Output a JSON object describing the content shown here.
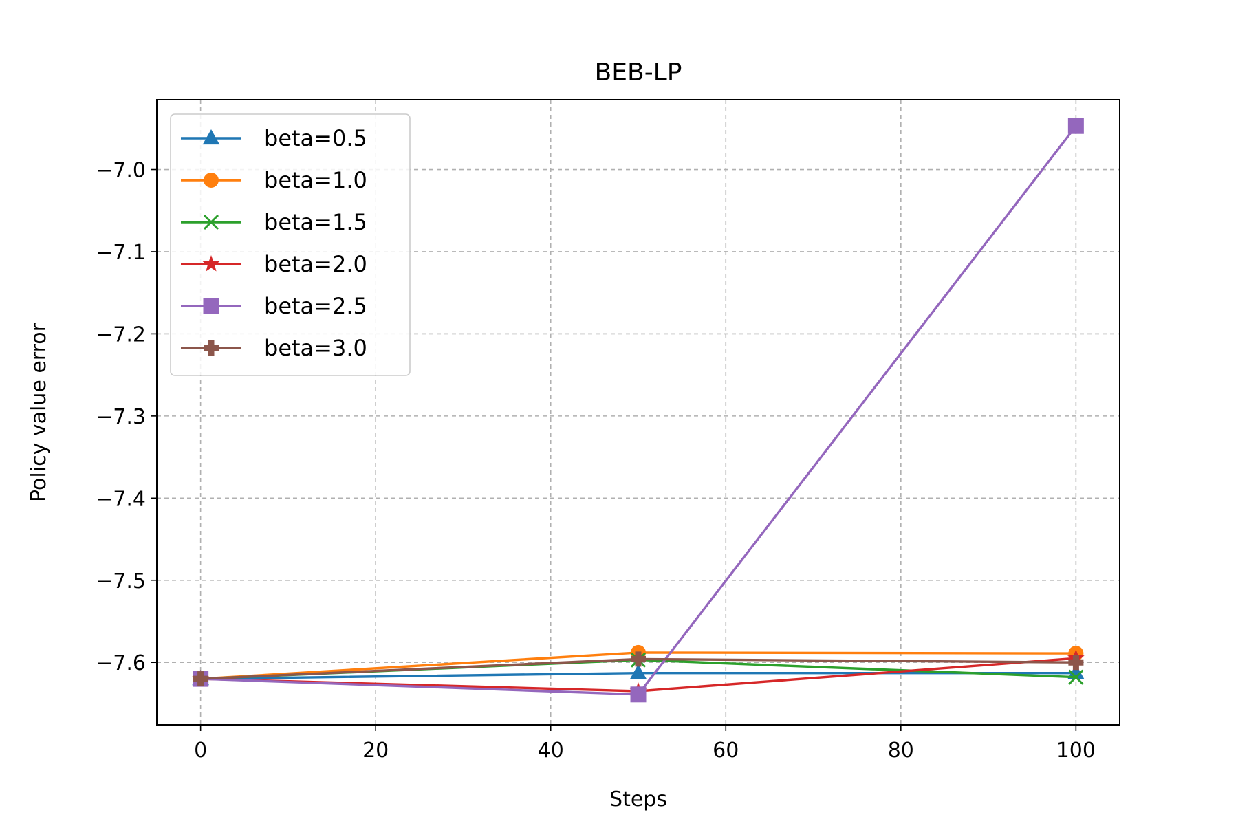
{
  "chart_data": {
    "type": "line",
    "title": "BEB-LP",
    "xlabel": "Steps",
    "ylabel": "Policy value error",
    "x": [
      0,
      50,
      100
    ],
    "xlim": [
      -5,
      105
    ],
    "ylim": [
      -7.676,
      -6.915
    ],
    "xticks": [
      0,
      20,
      40,
      60,
      80,
      100
    ],
    "xtick_labels": [
      "0",
      "20",
      "40",
      "60",
      "80",
      "100"
    ],
    "yticks": [
      -7.6,
      -7.5,
      -7.4,
      -7.3,
      -7.2,
      -7.1,
      -7.0
    ],
    "ytick_labels": [
      "−7.6",
      "−7.5",
      "−7.4",
      "−7.3",
      "−7.2",
      "−7.1",
      "−7.0"
    ],
    "grid": true,
    "legend_position": "upper-left",
    "series": [
      {
        "name": "beta=0.5",
        "color": "#1f77b4",
        "marker": "triangle",
        "values": [
          -7.62,
          -7.613,
          -7.613
        ]
      },
      {
        "name": "beta=1.0",
        "color": "#ff7f0e",
        "marker": "circle",
        "values": [
          -7.62,
          -7.588,
          -7.589
        ]
      },
      {
        "name": "beta=1.5",
        "color": "#2ca02c",
        "marker": "x",
        "values": [
          -7.62,
          -7.597,
          -7.618
        ]
      },
      {
        "name": "beta=2.0",
        "color": "#d62728",
        "marker": "star",
        "values": [
          -7.62,
          -7.635,
          -7.595
        ]
      },
      {
        "name": "beta=2.5",
        "color": "#9467bd",
        "marker": "square",
        "values": [
          -7.62,
          -7.639,
          -6.947
        ]
      },
      {
        "name": "beta=3.0",
        "color": "#8c564b",
        "marker": "plus",
        "values": [
          -7.62,
          -7.596,
          -7.6
        ]
      }
    ]
  }
}
